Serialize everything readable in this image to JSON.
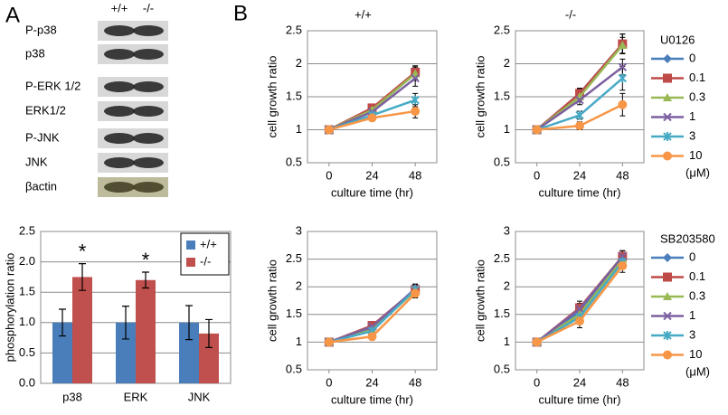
{
  "panel_labels": {
    "a": "A",
    "b": "B"
  },
  "blot": {
    "lanes": [
      "+/+",
      "-/-"
    ],
    "rows": [
      "P-p38",
      "p38",
      "P-ERK 1/2",
      "ERK1/2",
      "P-JNK",
      "JNK",
      "βactin"
    ]
  },
  "chart_data": [
    {
      "type": "bar",
      "ylabel": "phosphorylation ratio",
      "categories": [
        "p38",
        "ERK",
        "JNK"
      ],
      "series": [
        {
          "name": "+/+",
          "color": "#4a7ebb",
          "values": [
            1,
            1,
            1
          ],
          "errors": [
            0.22,
            0.27,
            0.28
          ]
        },
        {
          "name": "-/-",
          "color": "#c0504d",
          "values": [
            1.75,
            1.7,
            0.82
          ],
          "errors": [
            0.22,
            0.13,
            0.23
          ]
        }
      ],
      "annotations": [
        {
          "text": "*",
          "category": "p38"
        },
        {
          "text": "*",
          "category": "ERK"
        }
      ],
      "ylim": [
        0,
        2.5
      ],
      "yticks": [
        {
          "value": 0,
          "label": "0.0"
        },
        {
          "value": 0.5,
          "label": "0.5"
        },
        {
          "value": 1,
          "label": "1.0"
        },
        {
          "value": 1.5,
          "label": "1.5"
        },
        {
          "value": 2,
          "label": "2.0"
        },
        {
          "value": 2.5,
          "label": "2.5"
        }
      ],
      "grid": true,
      "legend": "top-right"
    },
    {
      "type": "line",
      "title": "+/+",
      "xlabel": "culture time (hr)",
      "ylabel": "cell growth ratio",
      "x": [
        0,
        24,
        48
      ],
      "xlim": [
        -12,
        60
      ],
      "xticks": [
        0,
        24,
        48
      ],
      "ylim": [
        0.5,
        2.5
      ],
      "yticks": [
        0.5,
        1,
        1.5,
        2,
        2.5
      ],
      "grid": true,
      "series": [
        {
          "color": "#4a7ebb",
          "marker": "diamond",
          "values": [
            1,
            1.3,
            1.85
          ],
          "errors": [
            0,
            0.06,
            0.1
          ]
        },
        {
          "color": "#be4b48",
          "marker": "square",
          "values": [
            1,
            1.33,
            1.87
          ],
          "errors": [
            0,
            0.06,
            0.1
          ]
        },
        {
          "color": "#98b954",
          "marker": "triangle",
          "values": [
            1,
            1.3,
            1.85
          ],
          "errors": [
            0,
            0.05,
            0.1
          ]
        },
        {
          "color": "#7d60a0",
          "marker": "x",
          "values": [
            1,
            1.27,
            1.78
          ],
          "errors": [
            0,
            0.05,
            0.12
          ]
        },
        {
          "color": "#46aac5",
          "marker": "star",
          "values": [
            1,
            1.22,
            1.45
          ],
          "errors": [
            0,
            0.05,
            0.1
          ]
        },
        {
          "color": "#f79646",
          "marker": "circle",
          "values": [
            1,
            1.18,
            1.28
          ],
          "errors": [
            0,
            0.05,
            0.1
          ]
        }
      ]
    },
    {
      "type": "line",
      "title": "-/-",
      "xlabel": "culture time (hr)",
      "ylabel": "cell growth ratio",
      "x": [
        0,
        24,
        48
      ],
      "xlim": [
        -12,
        60
      ],
      "xticks": [
        0,
        24,
        48
      ],
      "ylim": [
        0.5,
        2.5
      ],
      "yticks": [
        0.5,
        1,
        1.5,
        2,
        2.5
      ],
      "grid": true,
      "legend_title": "U0126",
      "legend_note": "(μM)",
      "series": [
        {
          "name": "0",
          "color": "#4a7ebb",
          "marker": "diamond",
          "values": [
            1,
            1.55,
            2.3
          ],
          "errors": [
            0,
            0.07,
            0.15
          ]
        },
        {
          "name": "0.1",
          "color": "#be4b48",
          "marker": "square",
          "values": [
            1,
            1.55,
            2.3
          ],
          "errors": [
            0,
            0.08,
            0.15
          ]
        },
        {
          "name": "0.3",
          "color": "#98b954",
          "marker": "triangle",
          "values": [
            1,
            1.5,
            2.28
          ],
          "errors": [
            0,
            0.07,
            0.12
          ]
        },
        {
          "name": "1",
          "color": "#7d60a0",
          "marker": "x",
          "values": [
            1,
            1.45,
            1.95
          ],
          "errors": [
            0,
            0.07,
            0.12
          ]
        },
        {
          "name": "3",
          "color": "#46aac5",
          "marker": "star",
          "values": [
            1,
            1.22,
            1.78
          ],
          "errors": [
            0,
            0.06,
            0.18
          ]
        },
        {
          "name": "10",
          "color": "#f79646",
          "marker": "circle",
          "values": [
            1,
            1.06,
            1.38
          ],
          "errors": [
            0,
            0.06,
            0.17
          ]
        }
      ]
    },
    {
      "type": "line",
      "xlabel": "culture time (hr)",
      "ylabel": "cell growth ratio",
      "x": [
        0,
        24,
        48
      ],
      "xlim": [
        -12,
        60
      ],
      "xticks": [
        0,
        24,
        48
      ],
      "ylim": [
        0.5,
        3
      ],
      "yticks": [
        0.5,
        1,
        1.5,
        2,
        2.5,
        3
      ],
      "grid": true,
      "series": [
        {
          "color": "#4a7ebb",
          "marker": "diamond",
          "values": [
            1,
            1.25,
            1.97
          ],
          "errors": [
            0,
            0.07,
            0.08
          ]
        },
        {
          "color": "#be4b48",
          "marker": "square",
          "values": [
            1,
            1.3,
            1.95
          ],
          "errors": [
            0,
            0.07,
            0.08
          ]
        },
        {
          "color": "#98b954",
          "marker": "triangle",
          "values": [
            1,
            1.22,
            1.93
          ],
          "errors": [
            0,
            0.06,
            0.08
          ]
        },
        {
          "color": "#7d60a0",
          "marker": "x",
          "values": [
            1,
            1.28,
            1.96
          ],
          "errors": [
            0,
            0.06,
            0.08
          ]
        },
        {
          "color": "#46aac5",
          "marker": "star",
          "values": [
            1,
            1.2,
            1.95
          ],
          "errors": [
            0,
            0.06,
            0.08
          ]
        },
        {
          "color": "#f79646",
          "marker": "circle",
          "values": [
            1,
            1.1,
            1.88
          ],
          "errors": [
            0,
            0.06,
            0.08
          ]
        }
      ]
    },
    {
      "type": "line",
      "xlabel": "culture time (hr)",
      "ylabel": "cell growth ratio",
      "x": [
        0,
        24,
        48
      ],
      "xlim": [
        -12,
        60
      ],
      "xticks": [
        0,
        24,
        48
      ],
      "ylim": [
        0.5,
        3
      ],
      "yticks": [
        0.5,
        1,
        1.5,
        2,
        2.5,
        3
      ],
      "grid": true,
      "legend_title": "SB203580",
      "legend_note": "(μM)",
      "series": [
        {
          "name": "0",
          "color": "#4a7ebb",
          "marker": "diamond",
          "values": [
            1,
            1.55,
            2.55
          ],
          "errors": [
            0,
            0.1,
            0.1
          ]
        },
        {
          "name": "0.1",
          "color": "#be4b48",
          "marker": "square",
          "values": [
            1,
            1.62,
            2.55
          ],
          "errors": [
            0,
            0.12,
            0.1
          ]
        },
        {
          "name": "0.3",
          "color": "#98b954",
          "marker": "triangle",
          "values": [
            1,
            1.5,
            2.5
          ],
          "errors": [
            0,
            0.1,
            0.1
          ]
        },
        {
          "name": "1",
          "color": "#7d60a0",
          "marker": "x",
          "values": [
            1,
            1.6,
            2.55
          ],
          "errors": [
            0,
            0.1,
            0.1
          ]
        },
        {
          "name": "3",
          "color": "#46aac5",
          "marker": "star",
          "values": [
            1,
            1.45,
            2.45
          ],
          "errors": [
            0,
            0.1,
            0.12
          ]
        },
        {
          "name": "10",
          "color": "#f79646",
          "marker": "circle",
          "values": [
            1,
            1.38,
            2.38
          ],
          "errors": [
            0,
            0.12,
            0.12
          ]
        }
      ]
    }
  ]
}
